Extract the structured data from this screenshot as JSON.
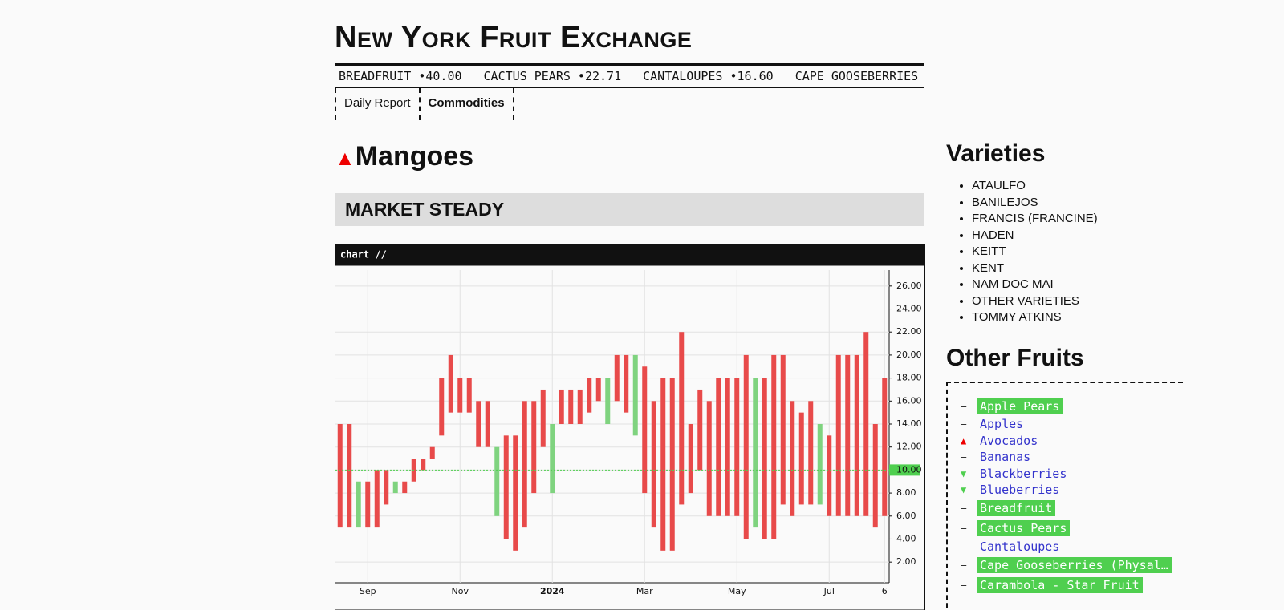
{
  "header": {
    "title": "New York Fruit Exchange"
  },
  "ticker": [
    {
      "name": "BREADFRUIT",
      "price": "40.00"
    },
    {
      "name": "CACTUS PEARS",
      "price": "22.71"
    },
    {
      "name": "CANTALOUPES",
      "price": "16.60"
    },
    {
      "name": "CAPE GOOSEBERRIES (P",
      "price": ""
    }
  ],
  "tabs": [
    "Daily Report",
    "Commodities"
  ],
  "commodity": {
    "name": "Mangoes",
    "status": "MARKET STEADY"
  },
  "chart_data": {
    "type": "range-bar",
    "title": "chart //",
    "categories": [
      null,
      null,
      null,
      "Sep",
      null,
      null,
      null,
      null,
      null,
      null,
      null,
      null,
      null,
      "Nov",
      null,
      null,
      null,
      null,
      null,
      null,
      null,
      null,
      null,
      "2024",
      null,
      null,
      null,
      null,
      null,
      null,
      null,
      null,
      null,
      "Mar",
      null,
      null,
      null,
      null,
      null,
      null,
      null,
      null,
      null,
      "May",
      null,
      null,
      null,
      null,
      null,
      null,
      null,
      null,
      null,
      "Jul",
      null,
      null,
      null,
      null,
      null,
      "6"
    ],
    "low": [
      5,
      5,
      5,
      5,
      5,
      7,
      8,
      8,
      9,
      10,
      11,
      13,
      15,
      15,
      15,
      12,
      12,
      6,
      4,
      3,
      5,
      8,
      12,
      8,
      14,
      14,
      14,
      15,
      16,
      14,
      16,
      15,
      13,
      8,
      5,
      3,
      3,
      7,
      8,
      10,
      6,
      6,
      6,
      6,
      4,
      5,
      4,
      4,
      7,
      6,
      7,
      7,
      7,
      6,
      6,
      6,
      6,
      6,
      5,
      6
    ],
    "high": [
      14,
      14,
      9,
      9,
      10,
      10,
      9,
      9,
      11,
      11,
      12,
      18,
      20,
      18,
      18,
      16,
      16,
      12,
      13,
      13,
      16,
      16,
      17,
      14,
      17,
      17,
      17,
      18,
      18,
      18,
      20,
      20,
      20,
      19,
      16,
      18,
      18,
      22,
      14,
      17,
      16,
      18,
      18,
      18,
      20,
      18,
      18,
      20,
      20,
      16,
      15,
      16,
      14,
      13,
      20,
      20,
      20,
      22,
      14,
      18
    ],
    "bar_colors": [
      "#e84a4a",
      "#e84a4a",
      "#7fd37f",
      "#e84a4a",
      "#e84a4a",
      "#e84a4a",
      "#7fd37f",
      "#e84a4a",
      "#e84a4a",
      "#e84a4a",
      "#e84a4a",
      "#e84a4a",
      "#e84a4a",
      "#e84a4a",
      "#e84a4a",
      "#e84a4a",
      "#e84a4a",
      "#7fd37f",
      "#e84a4a",
      "#e84a4a",
      "#e84a4a",
      "#e84a4a",
      "#e84a4a",
      "#7fd37f",
      "#e84a4a",
      "#e84a4a",
      "#e84a4a",
      "#e84a4a",
      "#e84a4a",
      "#7fd37f",
      "#e84a4a",
      "#e84a4a",
      "#7fd37f",
      "#e84a4a",
      "#e84a4a",
      "#e84a4a",
      "#e84a4a",
      "#e84a4a",
      "#e84a4a",
      "#e84a4a",
      "#e84a4a",
      "#e84a4a",
      "#e84a4a",
      "#e84a4a",
      "#e84a4a",
      "#7fd37f",
      "#e84a4a",
      "#e84a4a",
      "#e84a4a",
      "#e84a4a",
      "#e84a4a",
      "#e84a4a",
      "#7fd37f",
      "#e84a4a",
      "#e84a4a",
      "#e84a4a",
      "#e84a4a",
      "#e84a4a",
      "#e84a4a",
      "#e84a4a"
    ],
    "ylim": [
      0.2,
      27.8
    ],
    "yticks": [
      {
        "value": 2,
        "label": "2.00"
      },
      {
        "value": 4,
        "label": "4.00"
      },
      {
        "value": 6,
        "label": "6.00"
      },
      {
        "value": 8,
        "label": "8.00"
      },
      {
        "value": 10,
        "label": "10.00"
      },
      {
        "value": 12,
        "label": "12.00"
      },
      {
        "value": 14,
        "label": "14.00"
      },
      {
        "value": 16,
        "label": "16.00"
      },
      {
        "value": 18,
        "label": "18.00"
      },
      {
        "value": 20,
        "label": "20.00"
      },
      {
        "value": 22,
        "label": "22.00"
      },
      {
        "value": 24,
        "label": "24.00"
      },
      {
        "value": 26,
        "label": "26.00"
      }
    ],
    "price_line": {
      "value": 10,
      "label": "10.00",
      "color": "#4fcf4f"
    },
    "grid": true
  },
  "sidebar": {
    "varieties_title": "Varieties",
    "varieties": [
      "ATAULFO",
      "BANILEJOS",
      "FRANCIS (FRANCINE)",
      "HADEN",
      "KEITT",
      "KENT",
      "NAM DOC MAI",
      "OTHER VARIETIES",
      "TOMMY ATKINS"
    ],
    "others_title": "Other Fruits",
    "others": [
      {
        "name": "Apple Pears",
        "trend": "flat",
        "highlight": true
      },
      {
        "name": "Apples",
        "trend": "flat",
        "highlight": false
      },
      {
        "name": "Avocados",
        "trend": "up",
        "highlight": false
      },
      {
        "name": "Bananas",
        "trend": "flat",
        "highlight": false
      },
      {
        "name": "Blackberries",
        "trend": "down",
        "highlight": false
      },
      {
        "name": "Blueberries",
        "trend": "down",
        "highlight": false
      },
      {
        "name": "Breadfruit",
        "trend": "flat",
        "highlight": true
      },
      {
        "name": "Cactus Pears",
        "trend": "flat",
        "highlight": true
      },
      {
        "name": "Cantaloupes",
        "trend": "flat",
        "highlight": false
      },
      {
        "name": "Cape Gooseberries (Physal…",
        "trend": "flat",
        "highlight": true
      },
      {
        "name": "Carambola - Star Fruit",
        "trend": "flat",
        "highlight": true
      }
    ]
  }
}
